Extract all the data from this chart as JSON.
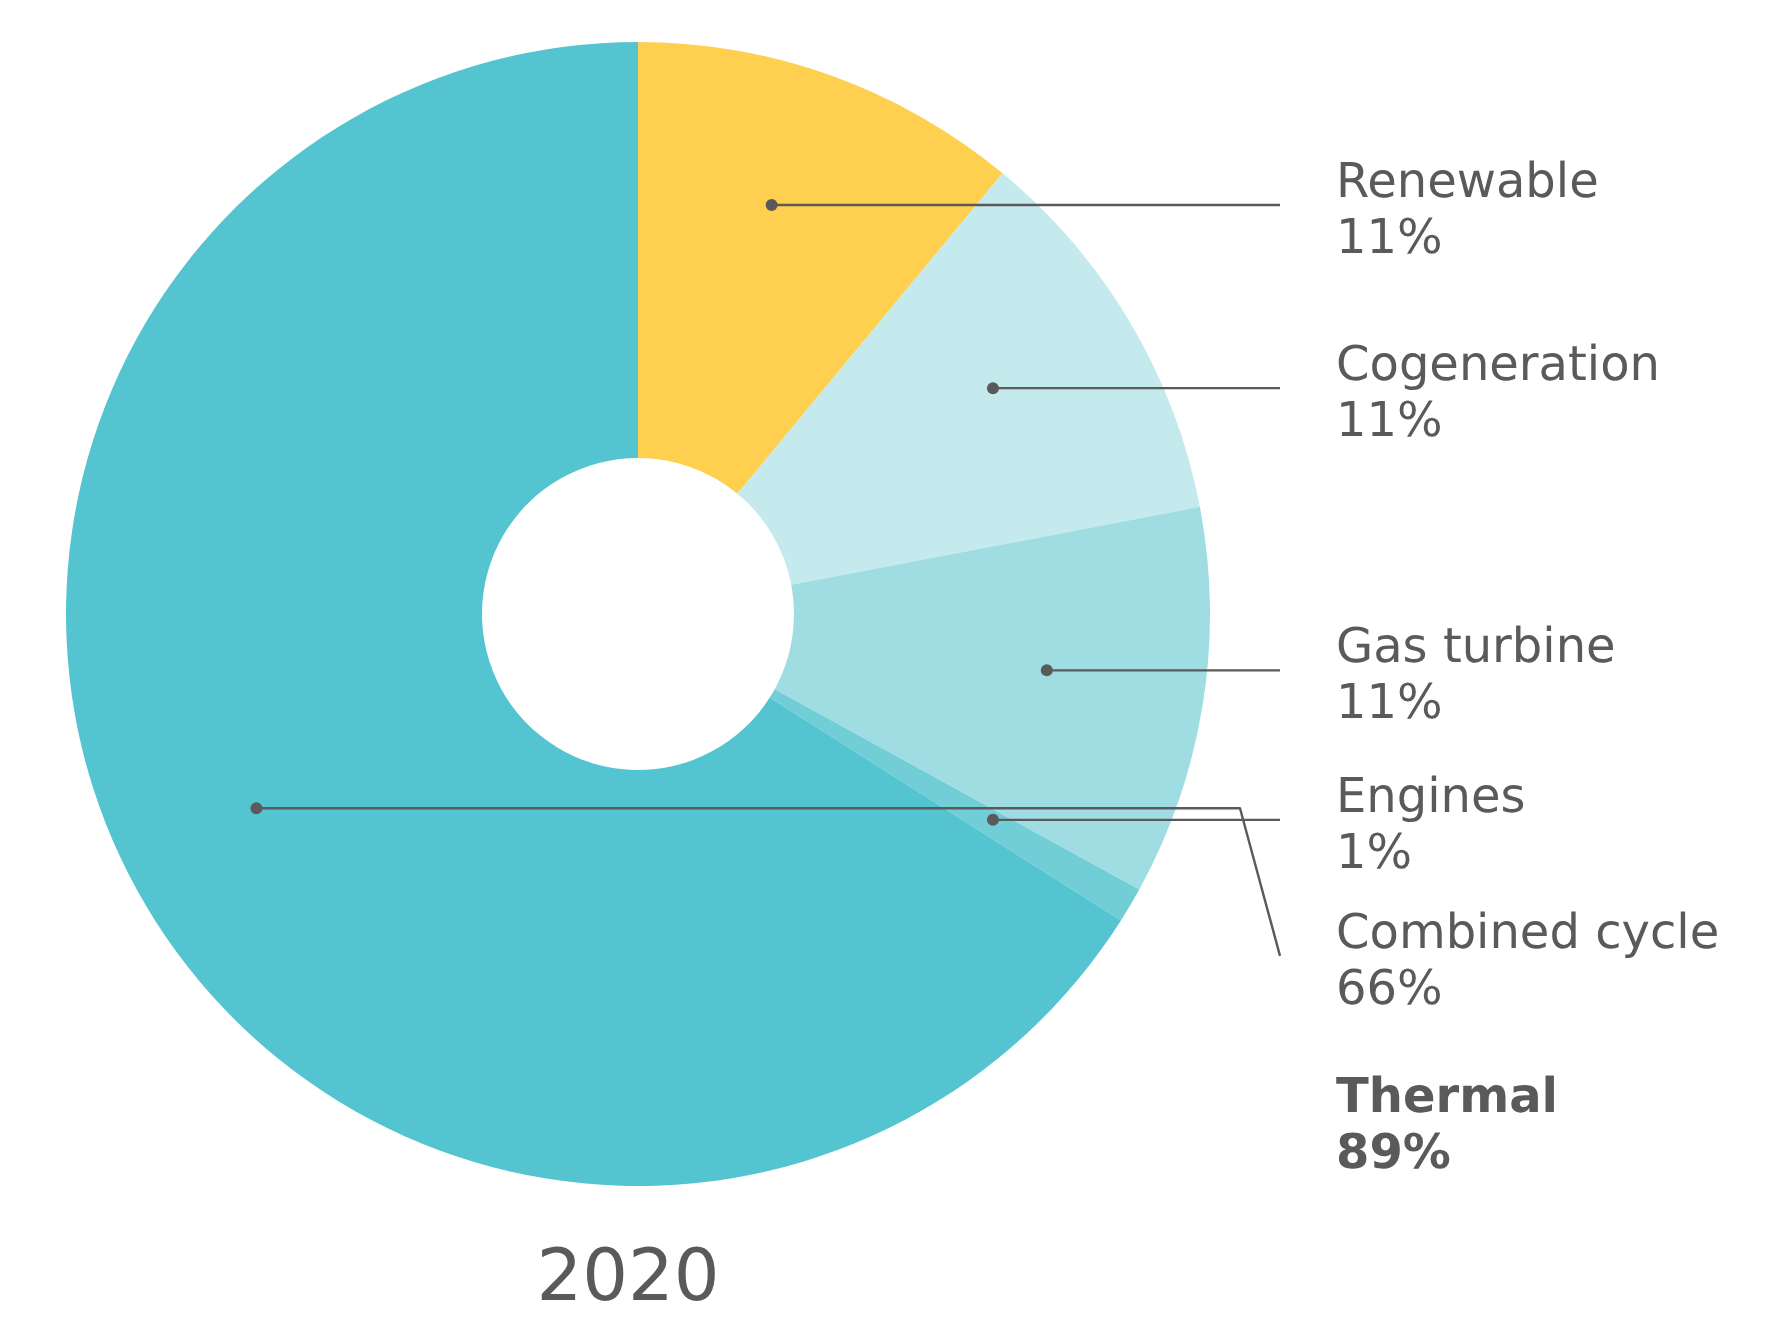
{
  "chart_data": {
    "type": "donut",
    "title": "2020",
    "categories": [
      "Renewable",
      "Cogeneration",
      "Gas turbine",
      "Engines",
      "Combined cycle"
    ],
    "values": [
      11,
      11,
      11,
      1,
      66
    ],
    "value_labels": [
      "11%",
      "11%",
      "11%",
      "1%",
      "66%"
    ],
    "colors": [
      "#ffcf50",
      "#c4eaed",
      "#9fdde3",
      "#72ced6",
      "#54c5d0"
    ],
    "annotations": [
      "Thermal 89%"
    ],
    "legend": false
  }
}
